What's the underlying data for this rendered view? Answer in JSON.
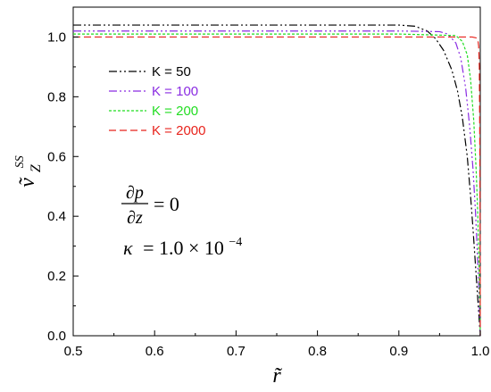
{
  "chart_data": {
    "type": "line",
    "xlabel": "r̃",
    "ylabel": "ṽ",
    "ylabel_sub": "Z",
    "ylabel_sup": "SS",
    "xlim": [
      0.5,
      1.0
    ],
    "ylim": [
      0.0,
      1.1
    ],
    "x_ticks": [
      "0.5",
      "0.6",
      "0.7",
      "0.8",
      "0.9",
      "1.0"
    ],
    "y_ticks": [
      "0.0",
      "0.2",
      "0.4",
      "0.6",
      "0.8",
      "1.0"
    ],
    "legend_position": "upper-left",
    "grid": false,
    "annotations": {
      "eq1_num": "∂p",
      "eq1_den": "∂z",
      "eq1_rhs": "= 0",
      "eq2_lhs": "κ",
      "eq2_rhs": "= 1.0 × 10",
      "eq2_exp": "−4"
    },
    "series": [
      {
        "name": "K = 50",
        "color": "#000000",
        "dash": "9,3,2,3,2,3",
        "x": [
          0.5,
          0.6,
          0.7,
          0.8,
          0.9,
          0.92,
          0.935,
          0.945,
          0.955,
          0.965,
          0.972,
          0.978,
          0.984,
          0.988,
          0.991,
          0.994,
          0.996,
          0.998,
          1.0
        ],
        "y": [
          1.04,
          1.04,
          1.04,
          1.04,
          1.04,
          1.036,
          1.02,
          0.995,
          0.955,
          0.89,
          0.82,
          0.73,
          0.6,
          0.47,
          0.36,
          0.24,
          0.16,
          0.08,
          0.0
        ]
      },
      {
        "name": "K = 100",
        "color": "#8a2be2",
        "dash": "9,3,2,3,2,3,2,3",
        "x": [
          0.5,
          0.6,
          0.7,
          0.8,
          0.9,
          0.95,
          0.96,
          0.97,
          0.976,
          0.982,
          0.987,
          0.991,
          0.994,
          0.996,
          0.998,
          0.999,
          1.0
        ],
        "y": [
          1.02,
          1.02,
          1.02,
          1.02,
          1.02,
          1.018,
          1.01,
          0.98,
          0.93,
          0.83,
          0.7,
          0.56,
          0.42,
          0.3,
          0.17,
          0.09,
          0.0
        ]
      },
      {
        "name": "K = 200",
        "color": "#22dd22",
        "dash": "3,2",
        "x": [
          0.5,
          0.6,
          0.7,
          0.8,
          0.9,
          0.97,
          0.978,
          0.984,
          0.988,
          0.992,
          0.995,
          0.997,
          0.9985,
          0.9995,
          1.0
        ],
        "y": [
          1.01,
          1.01,
          1.01,
          1.01,
          1.01,
          1.005,
          0.985,
          0.94,
          0.86,
          0.72,
          0.55,
          0.4,
          0.22,
          0.1,
          0.0
        ]
      },
      {
        "name": "K = 2000",
        "color": "#e8231c",
        "dash": "8,4",
        "x": [
          0.5,
          0.6,
          0.7,
          0.8,
          0.9,
          0.99,
          0.995,
          0.997,
          0.998,
          0.9988,
          0.9993,
          0.9997,
          1.0
        ],
        "y": [
          1.0,
          1.0,
          1.0,
          1.0,
          1.0,
          1.0,
          0.997,
          0.99,
          0.97,
          0.9,
          0.7,
          0.4,
          0.0
        ]
      }
    ]
  }
}
